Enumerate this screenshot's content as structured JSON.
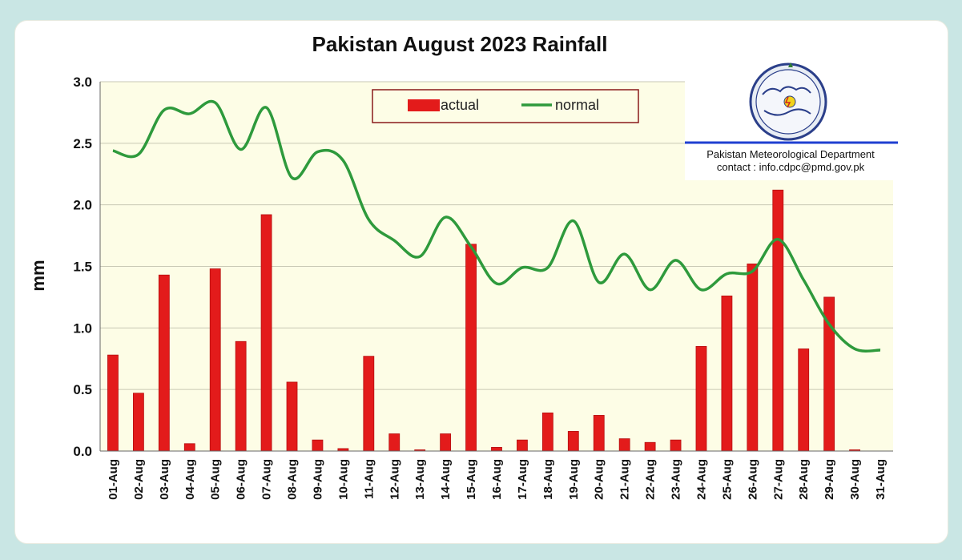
{
  "chart_data": {
    "type": "bar",
    "title": "Pakistan August 2023 Rainfall",
    "xlabel": "",
    "ylabel": "mm",
    "ylim": [
      0,
      3.0
    ],
    "yticks": [
      "0.0",
      "0.5",
      "1.0",
      "1.5",
      "2.0",
      "2.5",
      "3.0"
    ],
    "grid": true,
    "legend_position": "top-center",
    "categories": [
      "01-Aug",
      "02-Aug",
      "03-Aug",
      "04-Aug",
      "05-Aug",
      "06-Aug",
      "07-Aug",
      "08-Aug",
      "09-Aug",
      "10-Aug",
      "11-Aug",
      "12-Aug",
      "13-Aug",
      "14-Aug",
      "15-Aug",
      "16-Aug",
      "17-Aug",
      "18-Aug",
      "19-Aug",
      "20-Aug",
      "21-Aug",
      "22-Aug",
      "23-Aug",
      "24-Aug",
      "25-Aug",
      "26-Aug",
      "27-Aug",
      "28-Aug",
      "29-Aug",
      "30-Aug",
      "31-Aug"
    ],
    "series": [
      {
        "name": "actual",
        "type": "bar",
        "color": "#e31b1b",
        "values": [
          0.78,
          0.47,
          1.43,
          0.06,
          1.48,
          0.89,
          1.92,
          0.56,
          0.09,
          0.02,
          0.77,
          0.14,
          0.01,
          0.14,
          1.68,
          0.03,
          0.09,
          0.31,
          0.16,
          0.29,
          0.1,
          0.07,
          0.09,
          0.85,
          1.26,
          1.52,
          2.12,
          0.83,
          1.25,
          0.01,
          0.0
        ]
      },
      {
        "name": "normal",
        "type": "line",
        "color": "#2e9a3c",
        "values": [
          2.44,
          2.41,
          2.77,
          2.74,
          2.83,
          2.45,
          2.79,
          2.22,
          2.43,
          2.36,
          1.88,
          1.71,
          1.58,
          1.9,
          1.66,
          1.36,
          1.49,
          1.49,
          1.87,
          1.37,
          1.6,
          1.31,
          1.55,
          1.31,
          1.44,
          1.46,
          1.72,
          1.39,
          1.03,
          0.83,
          0.82
        ]
      }
    ]
  },
  "branding": {
    "org_name": "Pakistan Meteorological Department",
    "contact": "contact : info.cdpc@pmd.gov.pk",
    "line_color": "#1f3fd1"
  },
  "colors": {
    "plot_background": "#fdfde6",
    "grid": "#c8c8b4",
    "legend_border": "#8a1a1a"
  }
}
